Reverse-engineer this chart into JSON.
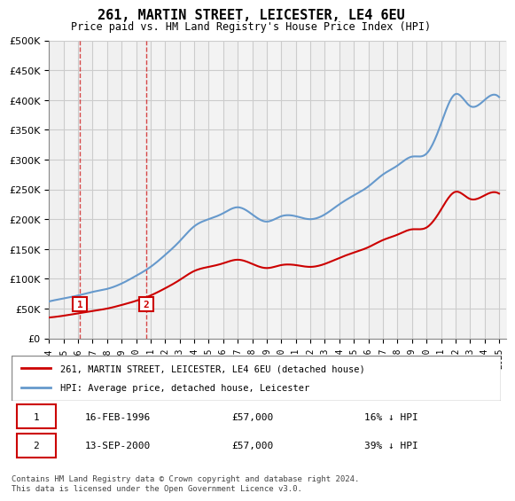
{
  "title": "261, MARTIN STREET, LEICESTER, LE4 6EU",
  "subtitle": "Price paid vs. HM Land Registry's House Price Index (HPI)",
  "ylabel_ticks": [
    "£0",
    "£50K",
    "£100K",
    "£150K",
    "£200K",
    "£250K",
    "£300K",
    "£350K",
    "£400K",
    "£450K",
    "£500K"
  ],
  "ylim": [
    0,
    500000
  ],
  "xlim_start": 1994.0,
  "xlim_end": 2025.5,
  "sale1_x": 1996.12,
  "sale1_y": 57000,
  "sale1_label": "1",
  "sale2_x": 2000.71,
  "sale2_y": 57000,
  "sale2_label": "2",
  "legend_line1": "261, MARTIN STREET, LEICESTER, LE4 6EU (detached house)",
  "legend_line2": "HPI: Average price, detached house, Leicester",
  "table_rows": [
    [
      "1",
      "16-FEB-1996",
      "£57,000",
      "16% ↓ HPI"
    ],
    [
      "2",
      "13-SEP-2000",
      "£57,000",
      "39% ↓ HPI"
    ]
  ],
  "footnote": "Contains HM Land Registry data © Crown copyright and database right 2024.\nThis data is licensed under the Open Government Licence v3.0.",
  "hpi_color": "#6699cc",
  "sale_color": "#cc0000",
  "bg_hatch_color": "#e8e8e8",
  "grid_color": "#cccccc",
  "sale_marker_color": "#cc0000",
  "hpi_x": [
    1994,
    1995,
    1996,
    1997,
    1998,
    1999,
    2000,
    2001,
    2002,
    2003,
    2004,
    2005,
    2006,
    2007,
    2008,
    2009,
    2010,
    2011,
    2012,
    2013,
    2014,
    2015,
    2016,
    2017,
    2018,
    2019,
    2020,
    2021,
    2022,
    2023,
    2024,
    2025
  ],
  "hpi_y": [
    62000,
    67000,
    72000,
    78000,
    83000,
    92000,
    105000,
    120000,
    140000,
    163000,
    188000,
    200000,
    210000,
    220000,
    208000,
    196000,
    205000,
    205000,
    200000,
    208000,
    225000,
    240000,
    255000,
    275000,
    290000,
    305000,
    310000,
    360000,
    410000,
    390000,
    400000,
    405000
  ],
  "sale_x": [
    1994,
    1995,
    1996,
    1997,
    1998,
    1999,
    2000,
    2001,
    2002,
    2003,
    2004,
    2005,
    2006,
    2007,
    2008,
    2009,
    2010,
    2011,
    2012,
    2013,
    2014,
    2015,
    2016,
    2017,
    2018,
    2019,
    2020,
    2021,
    2022,
    2023,
    2024,
    2025
  ],
  "sale_y": [
    35000,
    38000,
    42000,
    46000,
    50000,
    56000,
    63000,
    72000,
    84000,
    98000,
    113000,
    120000,
    126000,
    132000,
    125000,
    118000,
    123000,
    123000,
    120000,
    125000,
    135000,
    144000,
    153000,
    165000,
    174000,
    183000,
    186000,
    216000,
    246000,
    234000,
    240000,
    243000
  ]
}
